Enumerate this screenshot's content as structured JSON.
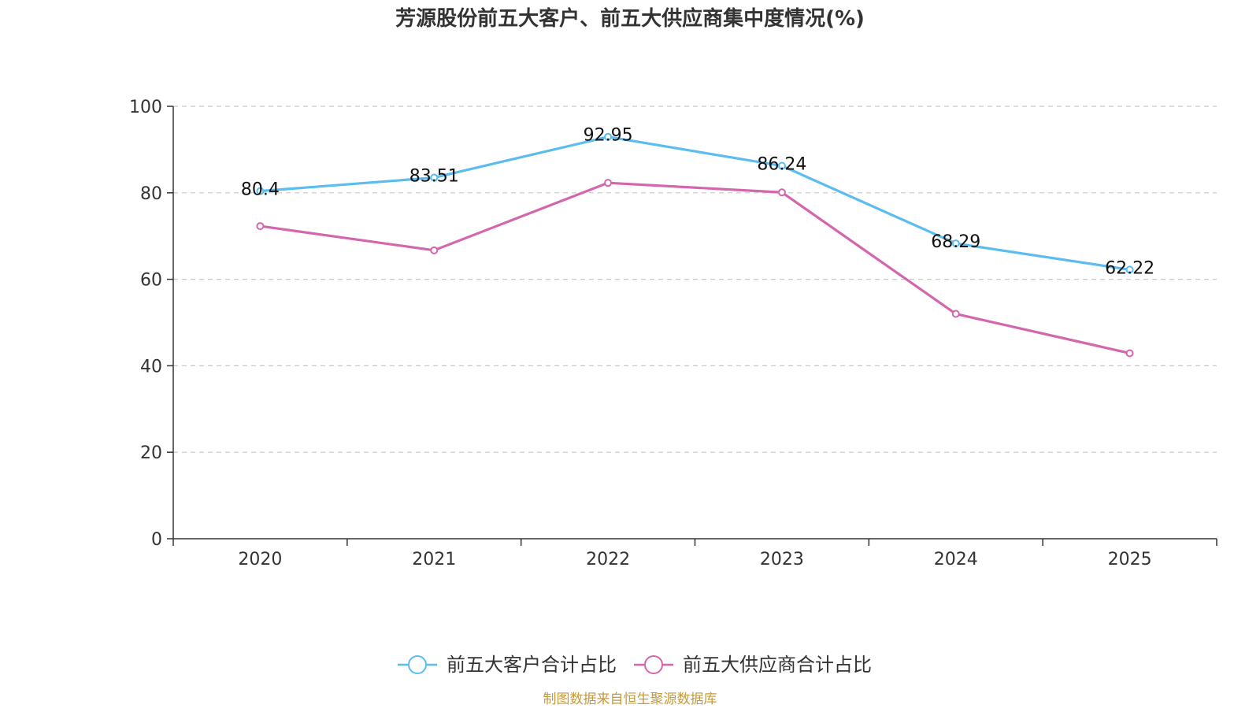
{
  "chart_data": {
    "type": "line",
    "title": "芳源股份前五大客户、前五大供应商集中度情况(%)",
    "categories": [
      "2020",
      "2021",
      "2022",
      "2023",
      "2024",
      "2025"
    ],
    "ylim": [
      0,
      100
    ],
    "yticks": [
      0,
      20,
      40,
      60,
      80,
      100
    ],
    "grid": true,
    "legend_position": "bottom-center",
    "series": [
      {
        "name": "前五大客户合计占比",
        "color": "#5bbcef",
        "values": [
          80.4,
          83.51,
          92.95,
          86.24,
          68.29,
          62.22
        ],
        "labels": [
          "80.4",
          "83.51",
          "92.95",
          "86.24",
          "68.29",
          "62.22"
        ],
        "show_labels": true
      },
      {
        "name": "前五大供应商合计占比",
        "color": "#d366ad",
        "values": [
          72.3,
          66.7,
          82.3,
          80.1,
          52.0,
          42.9
        ],
        "show_labels": false
      }
    ],
    "source": "制图数据来自恒生聚源数据库",
    "source_color": "#c49a3c"
  }
}
